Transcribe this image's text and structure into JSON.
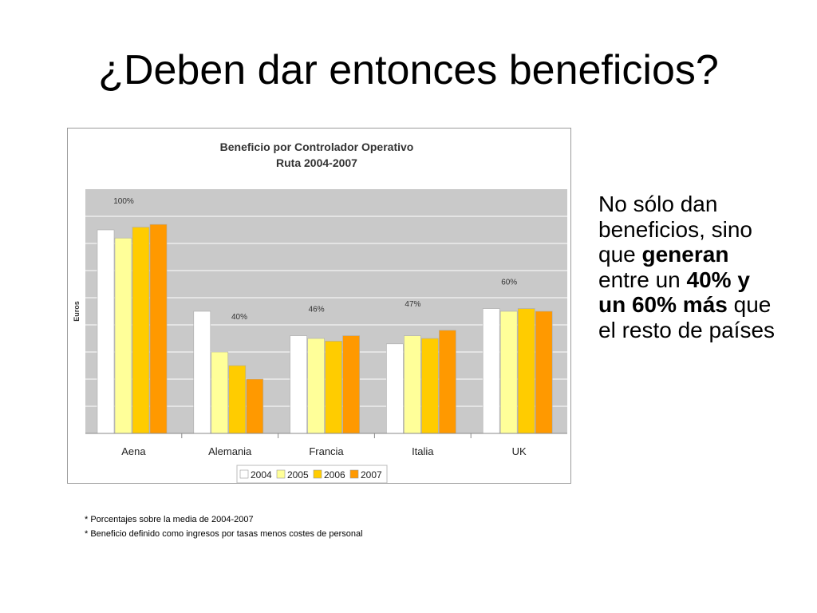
{
  "slide": {
    "title": "¿Deben dar entonces beneficios?"
  },
  "side_text": {
    "pre": "No sólo dan beneficios, sino que ",
    "bold1": "generan",
    "mid": " entre un ",
    "bold2": "40% y un 60% más",
    "post": " que el resto de países"
  },
  "footnotes": [
    "* Porcentajes sobre la media de 2004-2007",
    "* Beneficio definido como ingresos por tasas menos costes de personal"
  ],
  "colors": {
    "plot_background": "#c9c9c9",
    "frame_border": "#9a9a9a"
  },
  "chart_data": {
    "type": "bar",
    "title": [
      "Beneficio por Controlador Operativo",
      "Ruta 2004-2007"
    ],
    "ylabel": "Euros",
    "xlabel": "",
    "ylim": [
      0,
      9
    ],
    "grid": true,
    "legend_position": "bottom",
    "categories": [
      "Aena",
      "Alemania",
      "Francia",
      "Italia",
      "UK"
    ],
    "series": [
      {
        "name": "2004",
        "color": "#ffffff",
        "values": [
          7.5,
          4.5,
          3.6,
          3.3,
          4.6
        ]
      },
      {
        "name": "2005",
        "color": "#ffff99",
        "values": [
          7.2,
          3.0,
          3.5,
          3.6,
          4.5
        ]
      },
      {
        "name": "2006",
        "color": "#ffcc00",
        "values": [
          7.6,
          2.5,
          3.4,
          3.5,
          4.6
        ]
      },
      {
        "name": "2007",
        "color": "#ff9900",
        "values": [
          7.7,
          2.0,
          3.6,
          3.8,
          4.5
        ]
      }
    ],
    "annotations": [
      {
        "category": "Aena",
        "text": "100%"
      },
      {
        "category": "Alemania",
        "text": "40%"
      },
      {
        "category": "Francia",
        "text": "46%"
      },
      {
        "category": "Italia",
        "text": "47%"
      },
      {
        "category": "UK",
        "text": "60%"
      }
    ]
  }
}
